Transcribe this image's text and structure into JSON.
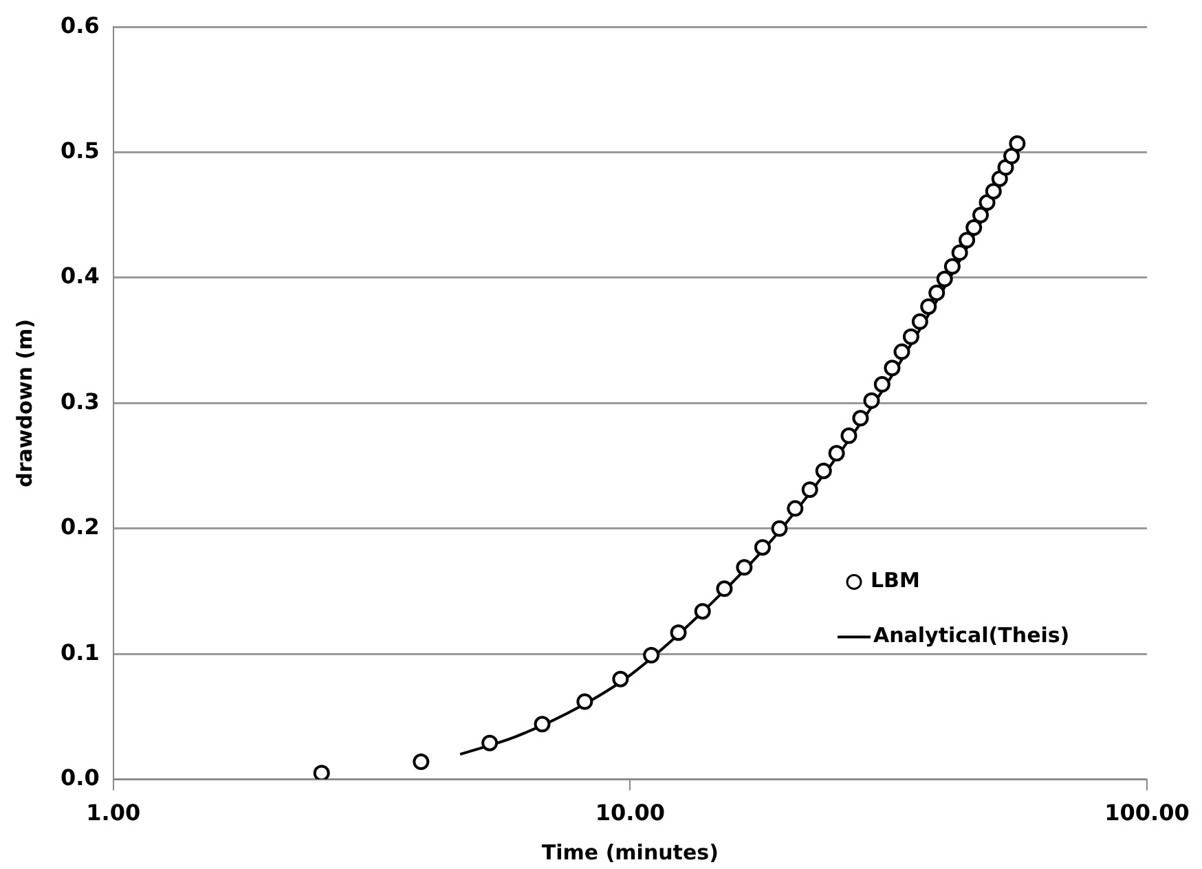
{
  "chart_data": {
    "type": "scatter",
    "xlabel": "Time (minutes)",
    "ylabel": "drawdown (m)",
    "log": "x",
    "grid": "y",
    "legend": "right",
    "xlim": [
      1,
      100
    ],
    "xticks": [
      {
        "value": 1,
        "label": "1.00"
      },
      {
        "value": 10,
        "label": "10.00"
      },
      {
        "value": 100,
        "label": "100.00"
      }
    ],
    "ylim": [
      0,
      0.6
    ],
    "yticks": [
      {
        "value": 0,
        "label": "0.0"
      },
      {
        "value": 0.1,
        "label": "0.1"
      },
      {
        "value": 0.2,
        "label": "0.2"
      },
      {
        "value": 0.3,
        "label": "0.3"
      },
      {
        "value": 0.4,
        "label": "0.4"
      },
      {
        "value": 0.5,
        "label": "0.5"
      },
      {
        "value": 0.6,
        "label": "0.6"
      }
    ],
    "series": [
      {
        "name": "LBM",
        "marker": "circle",
        "color": "#000000",
        "x": [
          2.53,
          3.94,
          5.35,
          6.76,
          8.17,
          9.58,
          10.99,
          12.4,
          13.81,
          15.22,
          16.63,
          18.04,
          19.45,
          20.86,
          22.27,
          23.68,
          25.09,
          26.5,
          27.91,
          29.32,
          30.73,
          32.14,
          33.55,
          34.96,
          36.37,
          37.78,
          39.19,
          40.6,
          42.01,
          43.42,
          44.83,
          46.24,
          47.65,
          49.06,
          50.47,
          51.88,
          53.29,
          54.7,
          56.11
        ],
        "values": [
          0.005,
          0.014,
          0.029,
          0.044,
          0.062,
          0.08,
          0.099,
          0.117,
          0.134,
          0.152,
          0.169,
          0.185,
          0.2,
          0.216,
          0.231,
          0.246,
          0.26,
          0.274,
          0.288,
          0.302,
          0.315,
          0.328,
          0.341,
          0.353,
          0.365,
          0.377,
          0.388,
          0.399,
          0.409,
          0.42,
          0.43,
          0.44,
          0.45,
          0.46,
          0.469,
          0.479,
          0.488,
          0.497,
          0.507
        ]
      },
      {
        "name": "Analytical(Theis)",
        "type": "line",
        "marker": "none",
        "line_style": "solid",
        "color": "#000000",
        "x": [
          4.69,
          6,
          8,
          10,
          15,
          20,
          30,
          40,
          50,
          56.1
        ],
        "values": [
          0.02,
          0.034,
          0.058,
          0.083,
          0.148,
          0.204,
          0.303,
          0.388,
          0.46,
          0.502
        ]
      }
    ]
  }
}
